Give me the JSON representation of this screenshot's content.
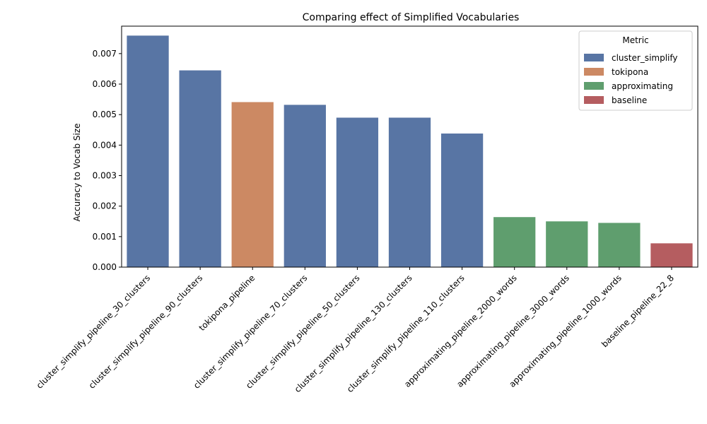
{
  "chart_data": {
    "type": "bar",
    "title": "Comparing effect of Simplified Vocabularies",
    "xlabel": "",
    "ylabel": "Accuracy to Vocab Size",
    "ylim": [
      0,
      0.0079
    ],
    "yticks": [
      "0.000",
      "0.001",
      "0.002",
      "0.003",
      "0.004",
      "0.005",
      "0.006",
      "0.007"
    ],
    "ytick_values": [
      0,
      0.001,
      0.002,
      0.003,
      0.004,
      0.005,
      0.006,
      0.007
    ],
    "grid": false,
    "legend": {
      "title": "Metric",
      "position": "top-right",
      "entries": [
        {
          "name": "cluster_simplify",
          "color": "#5875a4"
        },
        {
          "name": "tokipona",
          "color": "#cc8963"
        },
        {
          "name": "approximating",
          "color": "#5f9e6e"
        },
        {
          "name": "baseline",
          "color": "#b55d60"
        }
      ]
    },
    "categories": [
      "cluster_simplify_pipeline_30_clusters",
      "cluster_simplify_pipeline_90_clusters",
      "tokipona_pipeline",
      "cluster_simplify_pipeline_70_clusters",
      "cluster_simplify_pipeline_50_clusters",
      "cluster_simplify_pipeline_130_clusters",
      "cluster_simplify_pipeline_110_clusters",
      "approximating_pipeline_2000_words",
      "approximating_pipeline_3000_words",
      "approximating_pipeline_1000_words",
      "baseline_pipeline_22_8"
    ],
    "values": [
      0.00759,
      0.00645,
      0.00541,
      0.00532,
      0.0049,
      0.0049,
      0.00438,
      0.00164,
      0.0015,
      0.00145,
      0.00078
    ],
    "metrics": [
      "cluster_simplify",
      "cluster_simplify",
      "tokipona",
      "cluster_simplify",
      "cluster_simplify",
      "cluster_simplify",
      "cluster_simplify",
      "approximating",
      "approximating",
      "approximating",
      "baseline"
    ]
  }
}
